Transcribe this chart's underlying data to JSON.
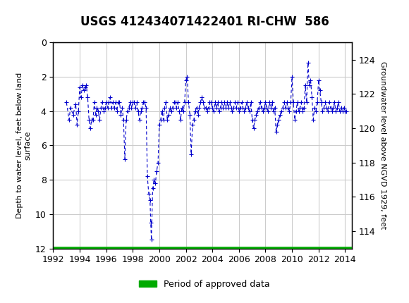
{
  "title": "USGS 412434071422401 RI-CHW  586",
  "ylabel_left": "Depth to water level, feet below land\nsurface",
  "ylabel_right": "Groundwater level above NGVD 1929, feet",
  "xlim": [
    1992,
    2014.5
  ],
  "ylim_left": [
    12,
    0
  ],
  "ylim_right": [
    113,
    125
  ],
  "xticks": [
    1992,
    1994,
    1996,
    1998,
    2000,
    2002,
    2004,
    2006,
    2008,
    2010,
    2012,
    2014
  ],
  "yticks_left": [
    0,
    2,
    4,
    6,
    8,
    10,
    12
  ],
  "yticks_right": [
    114,
    116,
    118,
    120,
    122,
    124
  ],
  "header_color": "#006633",
  "header_text_color": "#ffffff",
  "plot_bg": "#ffffff",
  "grid_color": "#cccccc",
  "data_color": "#0000cc",
  "approved_color": "#00aa00",
  "legend_label": "Period of approved data",
  "approved_y": 12,
  "approved_x_start": 1992,
  "approved_x_end": 2014.3,
  "data_points": [
    [
      1993.0,
      3.5
    ],
    [
      1993.2,
      4.5
    ],
    [
      1993.3,
      3.8
    ],
    [
      1993.5,
      4.2
    ],
    [
      1993.7,
      3.6
    ],
    [
      1993.8,
      4.8
    ],
    [
      1993.9,
      4.0
    ],
    [
      1994.0,
      2.6
    ],
    [
      1994.1,
      3.2
    ],
    [
      1994.2,
      2.5
    ],
    [
      1994.3,
      2.8
    ],
    [
      1994.4,
      2.6
    ],
    [
      1994.5,
      2.5
    ],
    [
      1994.6,
      3.2
    ],
    [
      1994.7,
      4.5
    ],
    [
      1994.8,
      5.0
    ],
    [
      1994.9,
      4.5
    ],
    [
      1995.0,
      4.5
    ],
    [
      1995.1,
      3.5
    ],
    [
      1995.2,
      4.2
    ],
    [
      1995.3,
      3.8
    ],
    [
      1995.4,
      4.0
    ],
    [
      1995.5,
      4.5
    ],
    [
      1995.6,
      3.8
    ],
    [
      1995.7,
      3.5
    ],
    [
      1995.8,
      4.0
    ],
    [
      1995.9,
      3.8
    ],
    [
      1996.0,
      3.5
    ],
    [
      1996.1,
      3.8
    ],
    [
      1996.2,
      3.5
    ],
    [
      1996.3,
      3.2
    ],
    [
      1996.4,
      3.8
    ],
    [
      1996.5,
      3.5
    ],
    [
      1996.6,
      3.8
    ],
    [
      1996.7,
      3.5
    ],
    [
      1996.8,
      4.0
    ],
    [
      1996.9,
      3.5
    ],
    [
      1997.0,
      3.5
    ],
    [
      1997.1,
      4.2
    ],
    [
      1997.2,
      3.8
    ],
    [
      1997.3,
      4.5
    ],
    [
      1997.4,
      6.8
    ],
    [
      1997.5,
      4.5
    ],
    [
      1997.6,
      4.0
    ],
    [
      1997.7,
      3.8
    ],
    [
      1997.8,
      3.5
    ],
    [
      1997.9,
      3.8
    ],
    [
      1998.0,
      3.5
    ],
    [
      1998.1,
      3.5
    ],
    [
      1998.2,
      3.8
    ],
    [
      1998.3,
      3.5
    ],
    [
      1998.4,
      4.0
    ],
    [
      1998.5,
      4.5
    ],
    [
      1998.6,
      4.0
    ],
    [
      1998.7,
      3.8
    ],
    [
      1998.8,
      3.5
    ],
    [
      1998.9,
      3.5
    ],
    [
      1999.0,
      3.8
    ],
    [
      1999.1,
      7.8
    ],
    [
      1999.2,
      8.8
    ],
    [
      1999.3,
      9.2
    ],
    [
      1999.35,
      10.5
    ],
    [
      1999.4,
      11.5
    ],
    [
      1999.5,
      8.5
    ],
    [
      1999.6,
      8.0
    ],
    [
      1999.7,
      8.2
    ],
    [
      1999.8,
      7.5
    ],
    [
      1999.9,
      7.0
    ],
    [
      2000.0,
      4.8
    ],
    [
      2000.1,
      4.5
    ],
    [
      2000.2,
      4.0
    ],
    [
      2000.3,
      4.5
    ],
    [
      2000.4,
      3.8
    ],
    [
      2000.5,
      3.5
    ],
    [
      2000.6,
      4.5
    ],
    [
      2000.7,
      4.2
    ],
    [
      2000.8,
      3.8
    ],
    [
      2000.9,
      4.0
    ],
    [
      2001.0,
      3.8
    ],
    [
      2001.1,
      3.5
    ],
    [
      2001.2,
      3.5
    ],
    [
      2001.3,
      3.8
    ],
    [
      2001.4,
      3.5
    ],
    [
      2001.5,
      4.0
    ],
    [
      2001.6,
      4.5
    ],
    [
      2001.7,
      3.8
    ],
    [
      2001.8,
      4.0
    ],
    [
      2001.9,
      3.5
    ],
    [
      2002.0,
      2.2
    ],
    [
      2002.1,
      2.0
    ],
    [
      2002.2,
      3.5
    ],
    [
      2002.3,
      4.2
    ],
    [
      2002.4,
      6.5
    ],
    [
      2002.5,
      4.8
    ],
    [
      2002.6,
      4.5
    ],
    [
      2002.7,
      4.0
    ],
    [
      2002.8,
      3.8
    ],
    [
      2002.9,
      4.2
    ],
    [
      2003.0,
      3.8
    ],
    [
      2003.1,
      3.5
    ],
    [
      2003.2,
      3.2
    ],
    [
      2003.3,
      3.5
    ],
    [
      2003.4,
      3.8
    ],
    [
      2003.5,
      3.8
    ],
    [
      2003.6,
      4.0
    ],
    [
      2003.7,
      3.8
    ],
    [
      2003.8,
      3.5
    ],
    [
      2003.9,
      3.5
    ],
    [
      2004.0,
      3.8
    ],
    [
      2004.1,
      4.0
    ],
    [
      2004.2,
      3.5
    ],
    [
      2004.3,
      3.8
    ],
    [
      2004.4,
      3.5
    ],
    [
      2004.5,
      4.0
    ],
    [
      2004.6,
      3.8
    ],
    [
      2004.7,
      3.5
    ],
    [
      2004.8,
      3.8
    ],
    [
      2004.9,
      3.5
    ],
    [
      2005.0,
      3.8
    ],
    [
      2005.1,
      3.5
    ],
    [
      2005.2,
      3.8
    ],
    [
      2005.3,
      3.5
    ],
    [
      2005.4,
      3.8
    ],
    [
      2005.5,
      4.0
    ],
    [
      2005.6,
      3.8
    ],
    [
      2005.7,
      3.5
    ],
    [
      2005.8,
      3.8
    ],
    [
      2005.9,
      3.5
    ],
    [
      2006.0,
      4.0
    ],
    [
      2006.1,
      3.8
    ],
    [
      2006.2,
      3.5
    ],
    [
      2006.3,
      3.8
    ],
    [
      2006.4,
      4.0
    ],
    [
      2006.5,
      3.8
    ],
    [
      2006.6,
      3.5
    ],
    [
      2006.7,
      3.8
    ],
    [
      2006.8,
      4.0
    ],
    [
      2006.9,
      3.5
    ],
    [
      2007.0,
      4.5
    ],
    [
      2007.1,
      5.0
    ],
    [
      2007.2,
      4.5
    ],
    [
      2007.3,
      4.2
    ],
    [
      2007.4,
      4.0
    ],
    [
      2007.5,
      3.8
    ],
    [
      2007.6,
      3.5
    ],
    [
      2007.7,
      3.8
    ],
    [
      2007.8,
      4.0
    ],
    [
      2007.9,
      3.8
    ],
    [
      2008.0,
      3.5
    ],
    [
      2008.1,
      3.8
    ],
    [
      2008.2,
      4.0
    ],
    [
      2008.3,
      3.5
    ],
    [
      2008.4,
      3.8
    ],
    [
      2008.5,
      3.5
    ],
    [
      2008.6,
      4.0
    ],
    [
      2008.7,
      3.8
    ],
    [
      2008.8,
      5.2
    ],
    [
      2008.9,
      4.8
    ],
    [
      2009.0,
      4.5
    ],
    [
      2009.1,
      4.2
    ],
    [
      2009.2,
      4.0
    ],
    [
      2009.3,
      3.8
    ],
    [
      2009.4,
      3.5
    ],
    [
      2009.5,
      3.8
    ],
    [
      2009.6,
      3.5
    ],
    [
      2009.7,
      3.8
    ],
    [
      2009.8,
      4.0
    ],
    [
      2009.9,
      3.5
    ],
    [
      2010.0,
      2.0
    ],
    [
      2010.1,
      3.5
    ],
    [
      2010.2,
      4.5
    ],
    [
      2010.3,
      4.0
    ],
    [
      2010.4,
      3.5
    ],
    [
      2010.5,
      4.0
    ],
    [
      2010.6,
      3.8
    ],
    [
      2010.7,
      3.5
    ],
    [
      2010.8,
      4.0
    ],
    [
      2010.9,
      3.8
    ],
    [
      2011.0,
      2.5
    ],
    [
      2011.1,
      3.5
    ],
    [
      2011.2,
      1.2
    ],
    [
      2011.3,
      2.5
    ],
    [
      2011.4,
      2.2
    ],
    [
      2011.5,
      3.2
    ],
    [
      2011.6,
      4.5
    ],
    [
      2011.7,
      3.8
    ],
    [
      2011.8,
      4.0
    ],
    [
      2011.9,
      3.5
    ],
    [
      2012.0,
      2.2
    ],
    [
      2012.1,
      2.8
    ],
    [
      2012.2,
      3.5
    ],
    [
      2012.3,
      4.0
    ],
    [
      2012.4,
      3.8
    ],
    [
      2012.5,
      3.5
    ],
    [
      2012.6,
      3.8
    ],
    [
      2012.7,
      4.0
    ],
    [
      2012.8,
      3.5
    ],
    [
      2012.9,
      3.8
    ],
    [
      2013.0,
      4.0
    ],
    [
      2013.1,
      3.8
    ],
    [
      2013.2,
      3.5
    ],
    [
      2013.3,
      4.0
    ],
    [
      2013.4,
      3.8
    ],
    [
      2013.5,
      3.5
    ],
    [
      2013.6,
      4.0
    ],
    [
      2013.7,
      3.8
    ],
    [
      2013.8,
      4.0
    ],
    [
      2013.9,
      3.8
    ],
    [
      2014.0,
      4.0
    ],
    [
      2014.1,
      4.0
    ]
  ]
}
